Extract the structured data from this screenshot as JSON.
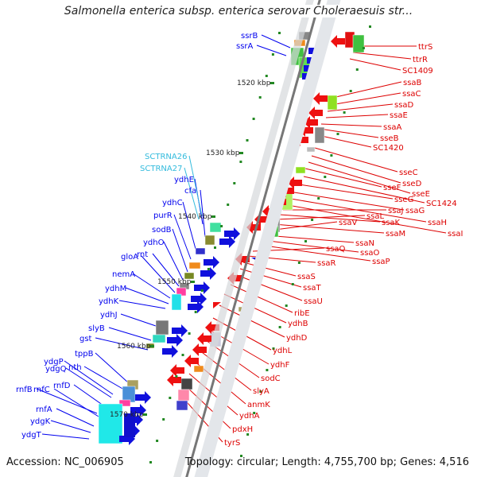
{
  "title": "Salmonella enterica subsp. enterica serovar Choleraesuis str...",
  "footer": {
    "accession": "Accession: NC_006905",
    "stats": "Topology: circular; Length: 4,755,700 bp; Genes: 4,516"
  },
  "colors": {
    "left_labels": "#0000ee",
    "right_labels": "#dd0000",
    "rna_labels": "#33bbdd",
    "backbone": "#777777",
    "tick": "#228822"
  },
  "ticks": [
    "1520 kbp",
    "1530 kbp",
    "1540 kbp",
    "1550 kbp",
    "1560 kbp",
    "1570 kbp"
  ],
  "left_genes": [
    "ssrB",
    "ssrA",
    "ydhE",
    "cfa",
    "ydhC",
    "purR",
    "sodB",
    "ydhO",
    "rnt",
    "gloA",
    "nemA",
    "ydhM",
    "ydhK",
    "ydhJ",
    "slyB",
    "gst",
    "tppB",
    "nth",
    "ydgP",
    "ydgQ",
    "rnfD",
    "rnfB",
    "rnfC",
    "rnfA",
    "ydgK",
    "ydgT"
  ],
  "rna_genes": [
    "SCTRNA26",
    "SCTRNA27"
  ],
  "right_genes": [
    "ttrS",
    "ttrR",
    "SC1409",
    "ssaB",
    "ssaC",
    "ssaD",
    "ssaE",
    "ssaA",
    "sseB",
    "SC1420",
    "sseC",
    "sseD",
    "sseE",
    "sseF",
    "SC1424",
    "sseG",
    "ssaG",
    "ssaH",
    "ssaI",
    "ssaJ",
    "ssaK",
    "ssaL",
    "ssaM",
    "ssaV",
    "ssaN",
    "ssaO",
    "ssaP",
    "ssaQ",
    "ssaR",
    "ssaS",
    "ssaT",
    "ssaU",
    "ribE",
    "ydhB",
    "ydhD",
    "ydhL",
    "ydhF",
    "sodC",
    "slyA",
    "anmK",
    "ydhA",
    "pdxH",
    "tyrS"
  ]
}
